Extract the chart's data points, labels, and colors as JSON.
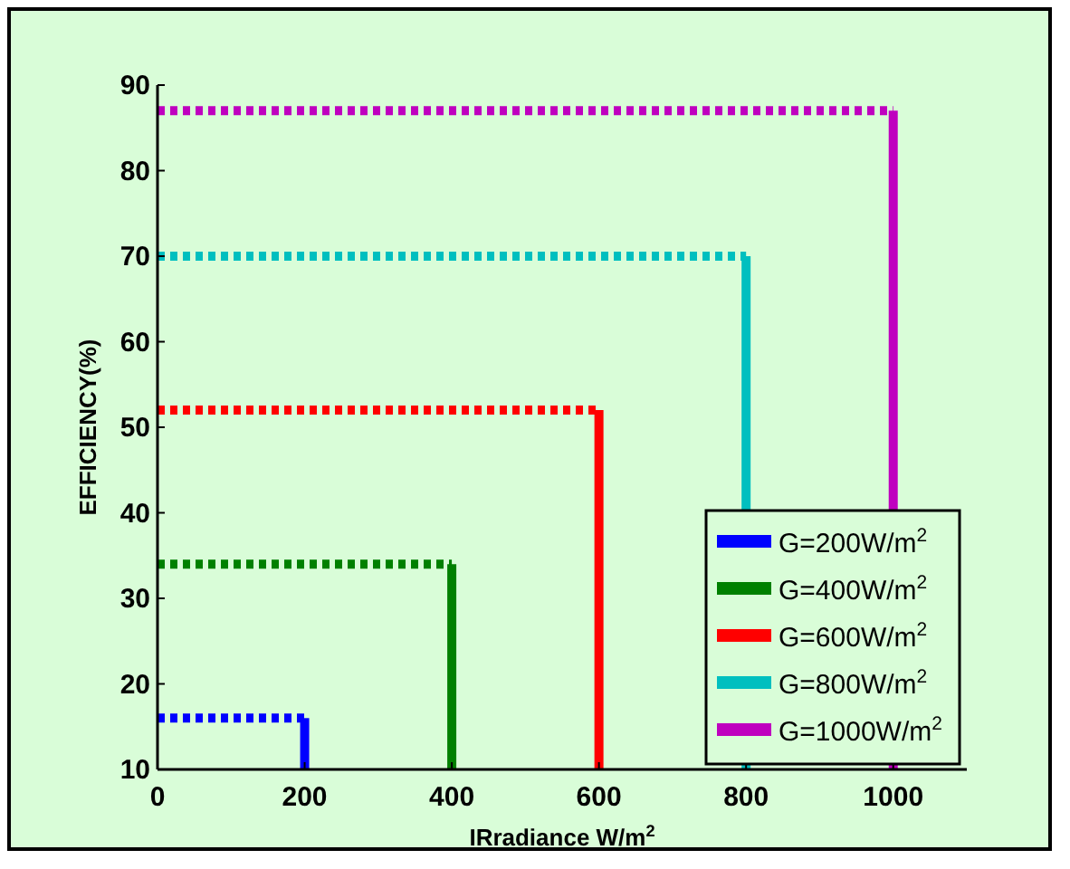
{
  "chart_data": {
    "type": "line",
    "xlabel": "IRradiance W/m$^{2}$",
    "ylabel": "EFFICIENCY(%)",
    "xlim": [
      0,
      1100
    ],
    "xticks": [
      0,
      200,
      400,
      600,
      800,
      1000
    ],
    "ylim": [
      10,
      90
    ],
    "yticks": [
      10,
      20,
      30,
      40,
      50,
      60,
      70,
      80,
      90
    ],
    "grid": false,
    "legend": "bottom right",
    "marker": "none",
    "series": [
      {
        "color": "#0000ff",
        "x": [
          0,
          200
        ],
        "values": [
          16,
          16
        ],
        "line_style": "dotted"
      },
      {
        "color": "#008000",
        "x": [
          0,
          400
        ],
        "values": [
          34,
          34
        ],
        "line_style": "dotted"
      },
      {
        "color": "#ff0000",
        "x": [
          0,
          600
        ],
        "values": [
          52,
          52
        ],
        "line_style": "dotted"
      },
      {
        "color": "#00bfbf",
        "x": [
          0,
          800
        ],
        "values": [
          70,
          70
        ],
        "line_style": "dotted"
      },
      {
        "color": "#bf00bf",
        "x": [
          0,
          1000
        ],
        "values": [
          87,
          87
        ],
        "line_style": "dotted"
      },
      {
        "name": "G=200W/m$^{2}$",
        "color": "#0000ff",
        "x": [
          200,
          200
        ],
        "values": [
          16,
          10
        ],
        "line_style": "solid"
      },
      {
        "name": "G=400W/m$^{2}$",
        "color": "#008000",
        "x": [
          400,
          400
        ],
        "values": [
          34,
          10
        ],
        "line_style": "solid"
      },
      {
        "name": "G=600W/m$^{2}$",
        "color": "#ff0000",
        "x": [
          600,
          600
        ],
        "values": [
          52,
          10
        ],
        "line_style": "solid"
      },
      {
        "name": "G=800W/m$^{2}$",
        "color": "#00bfbf",
        "x": [
          800,
          800
        ],
        "values": [
          70,
          10
        ],
        "line_style": "solid"
      },
      {
        "name": "G=1000W/m$^{2}$",
        "color": "#bf00bf",
        "x": [
          1000,
          1000
        ],
        "values": [
          87,
          10
        ],
        "line_style": "solid"
      }
    ]
  }
}
